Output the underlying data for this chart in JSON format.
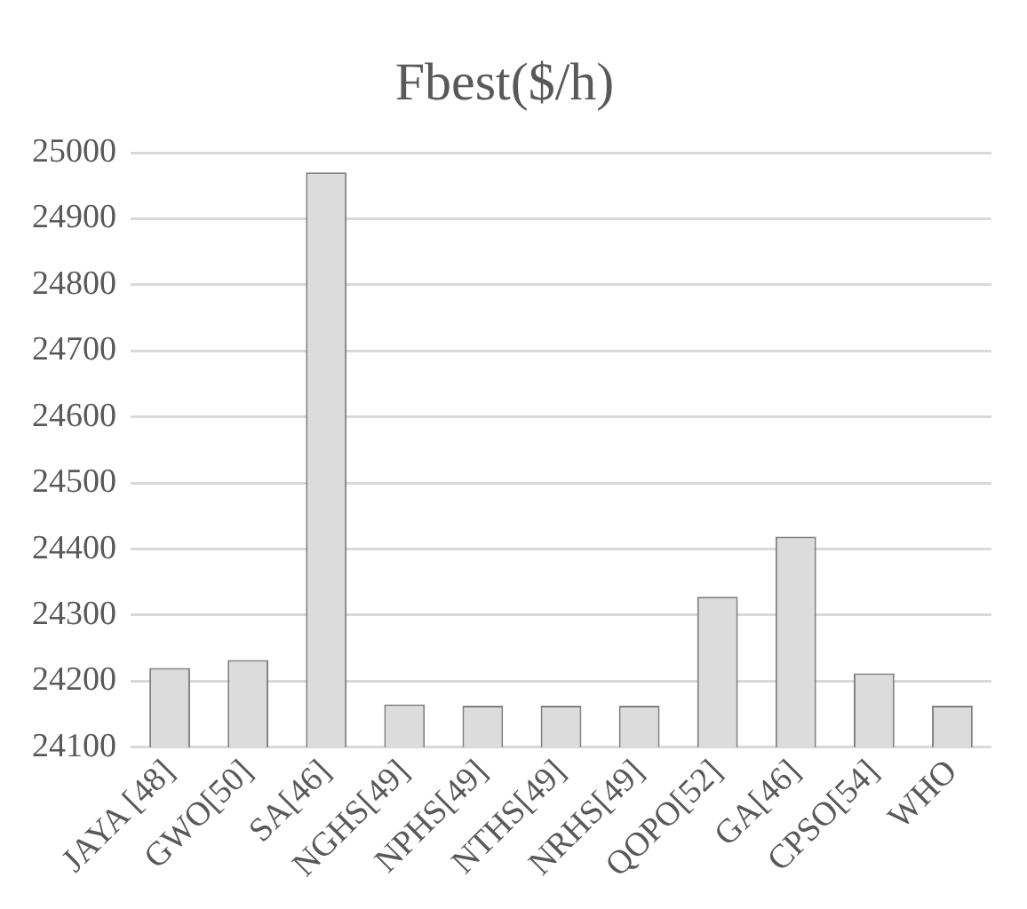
{
  "chart_data": {
    "type": "bar",
    "title": "Fbest($/h)",
    "categories": [
      "JAYA [48]",
      "GWO[50]",
      "SA[46]",
      "NGHS[49]",
      "NPHS[49]",
      "NTHS[49]",
      "NRHS[49]",
      "QOPO[52]",
      "GA[46]",
      "CPSO[54]",
      "WHO"
    ],
    "values": [
      24220,
      24232,
      24970,
      24165,
      24163,
      24163,
      24163,
      24328,
      24419,
      24212,
      24163
    ],
    "color": "#dcdcdc",
    "ylim": [
      24100,
      25000
    ],
    "yticks": [
      24100,
      24200,
      24300,
      24400,
      24500,
      24600,
      24700,
      24800,
      24900,
      25000
    ],
    "grid": "y"
  }
}
